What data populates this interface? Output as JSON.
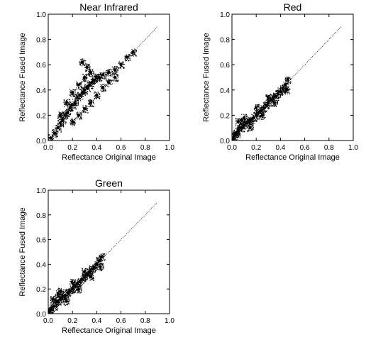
{
  "chart_data": [
    {
      "type": "scatter",
      "title": "Near Infrared",
      "xlabel": "Reflectance Original Image",
      "ylabel": "Reflectance Fused Image",
      "xlim": [
        0,
        1
      ],
      "ylim": [
        0,
        1
      ],
      "xticks": [
        "0.0",
        "0.2",
        "0.4",
        "0.6",
        "0.8",
        "1.0"
      ],
      "yticks": [
        "0.0",
        "0.2",
        "0.4",
        "0.6",
        "0.8",
        "1.0"
      ],
      "grid": false,
      "series": [
        {
          "color": "#000000",
          "points": [
            [
              0.02,
              0.02
            ],
            [
              0.05,
              0.06
            ],
            [
              0.08,
              0.1
            ],
            [
              0.1,
              0.14
            ],
            [
              0.12,
              0.16
            ],
            [
              0.14,
              0.2
            ],
            [
              0.16,
              0.22
            ],
            [
              0.18,
              0.26
            ],
            [
              0.2,
              0.28
            ],
            [
              0.22,
              0.3
            ],
            [
              0.24,
              0.34
            ],
            [
              0.26,
              0.36
            ],
            [
              0.28,
              0.38
            ],
            [
              0.3,
              0.4
            ],
            [
              0.32,
              0.42
            ],
            [
              0.34,
              0.44
            ],
            [
              0.36,
              0.46
            ],
            [
              0.38,
              0.48
            ],
            [
              0.4,
              0.5
            ],
            [
              0.42,
              0.5
            ],
            [
              0.45,
              0.52
            ],
            [
              0.5,
              0.54
            ],
            [
              0.55,
              0.56
            ],
            [
              0.6,
              0.6
            ],
            [
              0.65,
              0.66
            ],
            [
              0.7,
              0.7
            ],
            [
              0.1,
              0.2
            ],
            [
              0.15,
              0.3
            ],
            [
              0.2,
              0.38
            ],
            [
              0.25,
              0.44
            ],
            [
              0.3,
              0.5
            ],
            [
              0.35,
              0.54
            ],
            [
              0.2,
              0.15
            ],
            [
              0.25,
              0.2
            ],
            [
              0.3,
              0.25
            ],
            [
              0.35,
              0.3
            ],
            [
              0.4,
              0.36
            ],
            [
              0.45,
              0.42
            ],
            [
              0.5,
              0.46
            ],
            [
              0.55,
              0.5
            ],
            [
              0.28,
              0.62
            ],
            [
              0.32,
              0.58
            ]
          ]
        }
      ],
      "identity_line": {
        "from": [
          0.72,
          0.72
        ],
        "to": [
          0.9,
          0.9
        ]
      }
    },
    {
      "type": "scatter",
      "title": "Red",
      "xlabel": "Reflectance Original Image",
      "ylabel": "Reflectance Fused Image",
      "xlim": [
        0,
        1
      ],
      "ylim": [
        0,
        1
      ],
      "xticks": [
        "0.0",
        "0.2",
        "0.4",
        "0.6",
        "0.8",
        "1.0"
      ],
      "yticks": [
        "0.0",
        "0.2",
        "0.4",
        "0.6",
        "0.8",
        "1.0"
      ],
      "grid": false,
      "series": [
        {
          "color": "#000000",
          "points": [
            [
              0.01,
              0.01
            ],
            [
              0.02,
              0.04
            ],
            [
              0.03,
              0.06
            ],
            [
              0.04,
              0.05
            ],
            [
              0.05,
              0.08
            ],
            [
              0.06,
              0.1
            ],
            [
              0.08,
              0.1
            ],
            [
              0.1,
              0.12
            ],
            [
              0.12,
              0.14
            ],
            [
              0.14,
              0.15
            ],
            [
              0.16,
              0.16
            ],
            [
              0.18,
              0.18
            ],
            [
              0.2,
              0.2
            ],
            [
              0.22,
              0.22
            ],
            [
              0.24,
              0.24
            ],
            [
              0.26,
              0.26
            ],
            [
              0.28,
              0.28
            ],
            [
              0.3,
              0.3
            ],
            [
              0.32,
              0.32
            ],
            [
              0.34,
              0.34
            ],
            [
              0.36,
              0.35
            ],
            [
              0.38,
              0.37
            ],
            [
              0.4,
              0.39
            ],
            [
              0.42,
              0.41
            ],
            [
              0.44,
              0.44
            ],
            [
              0.46,
              0.48
            ],
            [
              0.05,
              0.15
            ],
            [
              0.08,
              0.16
            ],
            [
              0.1,
              0.18
            ],
            [
              0.2,
              0.26
            ],
            [
              0.3,
              0.34
            ],
            [
              0.15,
              0.1
            ],
            [
              0.25,
              0.2
            ],
            [
              0.35,
              0.3
            ],
            [
              0.45,
              0.4
            ]
          ]
        }
      ],
      "identity_line": {
        "from": [
          0.47,
          0.47
        ],
        "to": [
          0.9,
          0.9
        ]
      }
    },
    {
      "type": "scatter",
      "title": "Green",
      "xlabel": "Reflectance Original Image",
      "ylabel": "Reflectance Fused Image",
      "xlim": [
        0,
        1
      ],
      "ylim": [
        0,
        1
      ],
      "xticks": [
        "0.0",
        "0.2",
        "0.4",
        "0.6",
        "0.8",
        "1.0"
      ],
      "yticks": [
        "0.0",
        "0.2",
        "0.4",
        "0.6",
        "0.8",
        "1.0"
      ],
      "grid": false,
      "series": [
        {
          "color": "#000000",
          "points": [
            [
              0.01,
              0.01
            ],
            [
              0.02,
              0.03
            ],
            [
              0.03,
              0.05
            ],
            [
              0.05,
              0.06
            ],
            [
              0.06,
              0.09
            ],
            [
              0.08,
              0.1
            ],
            [
              0.1,
              0.12
            ],
            [
              0.12,
              0.14
            ],
            [
              0.14,
              0.15
            ],
            [
              0.16,
              0.17
            ],
            [
              0.18,
              0.18
            ],
            [
              0.2,
              0.2
            ],
            [
              0.22,
              0.22
            ],
            [
              0.24,
              0.24
            ],
            [
              0.26,
              0.26
            ],
            [
              0.28,
              0.28
            ],
            [
              0.3,
              0.3
            ],
            [
              0.32,
              0.32
            ],
            [
              0.34,
              0.34
            ],
            [
              0.36,
              0.36
            ],
            [
              0.38,
              0.37
            ],
            [
              0.4,
              0.4
            ],
            [
              0.42,
              0.43
            ],
            [
              0.44,
              0.46
            ],
            [
              0.04,
              0.12
            ],
            [
              0.08,
              0.16
            ],
            [
              0.1,
              0.18
            ],
            [
              0.2,
              0.25
            ],
            [
              0.3,
              0.34
            ],
            [
              0.15,
              0.1
            ],
            [
              0.25,
              0.2
            ],
            [
              0.35,
              0.3
            ],
            [
              0.43,
              0.38
            ]
          ]
        }
      ],
      "identity_line": {
        "from": [
          0.45,
          0.45
        ],
        "to": [
          0.9,
          0.9
        ]
      }
    }
  ]
}
